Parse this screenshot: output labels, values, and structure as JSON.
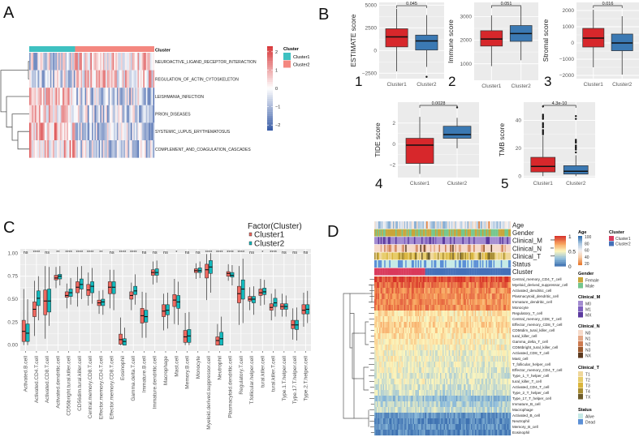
{
  "panel_labels": [
    "A",
    "B",
    "C",
    "D"
  ],
  "colors": {
    "cluster1_A": "#3ec1c1",
    "cluster2_A": "#f4877f",
    "red": "#d7272b",
    "blue": "#3b79b3",
    "c_cluster1": "#f0685f",
    "c_cluster2": "#12b9bd",
    "d_cluster1": "#d9395b",
    "d_cluster2": "#4470b8"
  },
  "chart_data": [
    {
      "id": "A",
      "type": "heatmap",
      "annotation_label": "Cluster",
      "rows": [
        "NEUROACTIVE_LIGAND_RECEPTOR_INTERACTION",
        "REGULATION_OF_ACTIN_CYTOSKELETON",
        "LEISHMANIA_INFECTION",
        "PRION_DISEASES",
        "SYSTEMIC_LUPUS_ERYTHEMATOSUS",
        "COMPLEMENT_AND_COAGULATION_CASCADES"
      ],
      "row_bias_cluster1": [
        -0.4,
        -0.4,
        0.5,
        0.6,
        0.7,
        0.6
      ],
      "colorbar": {
        "ticks": [
          2,
          1,
          0,
          -1,
          -2
        ],
        "range": [
          -2.3,
          2.3
        ]
      },
      "legend": {
        "title": "Cluster",
        "items": [
          "Cluster1",
          "Cluster2"
        ]
      }
    },
    {
      "id": "B",
      "type": "boxplot",
      "panels": [
        {
          "number": "1",
          "ylabel": "ESTIMATE score",
          "ylim": [
            -3100,
            5300
          ],
          "ticks": [
            -2500,
            0,
            2500,
            5000
          ],
          "p": "0.045",
          "categories": [
            "Cluster1",
            "Cluster2"
          ],
          "boxes": [
            {
              "min": -2300,
              "q1": 400,
              "median": 1500,
              "q3": 2400,
              "max": 4600,
              "outliers": []
            },
            {
              "min": -1800,
              "q1": 50,
              "median": 1050,
              "q3": 1700,
              "max": 3900,
              "outliers": [
                -2900
              ]
            }
          ]
        },
        {
          "number": "2",
          "ylabel": "Immune score",
          "ylim": [
            300,
            3600
          ],
          "ticks": [
            1000,
            2000,
            3000
          ],
          "p": "0.051",
          "categories": [
            "Cluster1",
            "Cluster2"
          ],
          "boxes": [
            {
              "min": 900,
              "q1": 1750,
              "median": 2050,
              "q3": 2400,
              "max": 3050,
              "outliers": []
            },
            {
              "min": 1150,
              "q1": 1950,
              "median": 2280,
              "q3": 2620,
              "max": 3400,
              "outliers": []
            }
          ]
        },
        {
          "number": "3",
          "ylabel": "Stromal score",
          "ylim": [
            -2200,
            2500
          ],
          "ticks": [
            -2000,
            -1000,
            0,
            1000,
            2000
          ],
          "p": "0.016",
          "categories": [
            "Cluster1",
            "Cluster2"
          ],
          "boxes": [
            {
              "min": -1500,
              "q1": -250,
              "median": 300,
              "q3": 900,
              "max": 2050,
              "outliers": []
            },
            {
              "min": -1950,
              "q1": -480,
              "median": 0,
              "q3": 550,
              "max": 1650,
              "outliers": []
            }
          ]
        },
        {
          "number": "4",
          "ylabel": "TIDE score",
          "ylim": [
            -3.2,
            4.0
          ],
          "ticks": [
            -2,
            0,
            2
          ],
          "p": "0.0028",
          "categories": [
            "Cluster1",
            "Cluster2"
          ],
          "boxes": [
            {
              "min": -2.85,
              "q1": -1.85,
              "median": -0.1,
              "q3": 0.55,
              "max": 2.6,
              "outliers": []
            },
            {
              "min": -0.4,
              "q1": 0.55,
              "median": 0.9,
              "q3": 1.7,
              "max": 2.5,
              "outliers": [
                3.5
              ]
            }
          ]
        },
        {
          "number": "5",
          "ylabel": "TMB score",
          "ylim": [
            -1,
            53
          ],
          "ticks": [
            0,
            20,
            40
          ],
          "p": "4.3e-10",
          "categories": [
            "Cluster1",
            "Cluster2"
          ],
          "boxes": [
            {
              "min": 0,
              "q1": 3,
              "median": 7,
              "q3": 13.5,
              "max": 29,
              "outliers": [
                30,
                31,
                32,
                33,
                35,
                36,
                37,
                38,
                41,
                42,
                43,
                44,
                50
              ]
            },
            {
              "min": 0,
              "q1": 1.5,
              "median": 3.5,
              "q3": 7.5,
              "max": 15,
              "outliers": [
                17,
                19,
                20,
                21,
                22,
                24,
                25,
                26,
                41,
                43
              ]
            }
          ]
        }
      ]
    },
    {
      "id": "C",
      "type": "boxplot",
      "legend": {
        "title": "Factor(Cluster)",
        "items": [
          "Cluster1",
          "Cluster2"
        ]
      },
      "ylim": [
        0,
        1
      ],
      "ticks": [
        "0.00",
        "0.25",
        "0.50",
        "0.75",
        "1.00"
      ],
      "categories": [
        "Activated.B.cell",
        "Activated.CD4.T.cell",
        "Activated.CD8.T.cell",
        "Activated.dendritic.cell",
        "CD56bright.tural.killer.cell",
        "CD56dim.tural.killer.cell",
        "Central.memory.CD8.T.cell",
        "Effector.memory.CD4.T.cell",
        "Effector.memory.CD8.T.cell",
        "Eosinophil",
        "Gamma.delta.T.cell",
        "Immature.B.cell",
        "Immature.dendritic.cell",
        "Macrophage",
        "Mast.cell",
        "Memory.B.cell",
        "Monocyte",
        "Myeloid.derived.suppressor.cell",
        "Neutrophil",
        "Plasmacytoid.dendritic.cell",
        "Regulatory.T.cell",
        "T.follicular.helper.cell",
        "tural.killer.cell",
        "tural.killer.T.cell",
        "Type.1.T.helper.cell",
        "Type.17.T.helper.cell",
        "Type.2.T.helper.cell"
      ],
      "significance": [
        "ns",
        "****",
        "ns",
        "**",
        "****",
        "****",
        "****",
        "**",
        "ns",
        "****",
        "****",
        "ns",
        "ns",
        "ns",
        "*",
        "ns",
        "ns",
        "****",
        "****",
        "****",
        "****",
        "ns",
        "*",
        "****",
        "ns",
        "ns",
        "ns"
      ],
      "cluster1": [
        [
          0,
          0.04,
          0.15,
          0.27,
          0.61
        ],
        [
          0.1,
          0.31,
          0.39,
          0.47,
          0.7
        ],
        [
          0.07,
          0.33,
          0.48,
          0.6,
          0.86
        ],
        [
          0.62,
          0.71,
          0.73,
          0.76,
          0.85
        ],
        [
          0.4,
          0.52,
          0.54,
          0.58,
          0.67
        ],
        [
          0.42,
          0.57,
          0.63,
          0.69,
          0.85
        ],
        [
          0.43,
          0.54,
          0.6,
          0.66,
          0.79
        ],
        [
          0.34,
          0.43,
          0.46,
          0.49,
          0.59
        ],
        [
          0.4,
          0.56,
          0.63,
          0.69,
          0.82
        ],
        [
          0,
          0.01,
          0.06,
          0.12,
          0.3
        ],
        [
          0.38,
          0.5,
          0.54,
          0.58,
          0.68
        ],
        [
          0.08,
          0.24,
          0.32,
          0.4,
          0.58
        ],
        [
          0.66,
          0.76,
          0.79,
          0.82,
          0.91
        ],
        [
          0.16,
          0.31,
          0.37,
          0.44,
          0.56
        ],
        [
          0.23,
          0.42,
          0.49,
          0.55,
          0.72
        ],
        [
          0,
          0.03,
          0.09,
          0.16,
          0.35
        ],
        [
          0.72,
          0.79,
          0.81,
          0.83,
          0.89
        ],
        [
          0.49,
          0.73,
          0.82,
          0.88,
          0.99
        ],
        [
          0,
          0,
          0.05,
          0.09,
          0.23
        ],
        [
          0.7,
          0.75,
          0.78,
          0.8,
          0.88
        ],
        [
          0.22,
          0.46,
          0.56,
          0.64,
          0.86
        ],
        [
          0.38,
          0.48,
          0.5,
          0.53,
          0.63
        ],
        [
          0.43,
          0.54,
          0.57,
          0.61,
          0.72
        ],
        [
          0.27,
          0.38,
          0.41,
          0.45,
          0.56
        ],
        [
          0.31,
          0.39,
          0.42,
          0.45,
          0.56
        ],
        [
          0.06,
          0.18,
          0.22,
          0.27,
          0.4
        ],
        [
          0.2,
          0.34,
          0.38,
          0.44,
          0.57
        ]
      ],
      "cluster2": [
        [
          0,
          0.04,
          0.13,
          0.23,
          0.5
        ],
        [
          0.27,
          0.43,
          0.51,
          0.59,
          0.75
        ],
        [
          0.21,
          0.36,
          0.48,
          0.61,
          0.85
        ],
        [
          0.65,
          0.72,
          0.75,
          0.77,
          0.86
        ],
        [
          0.44,
          0.53,
          0.57,
          0.61,
          0.73
        ],
        [
          0.5,
          0.61,
          0.66,
          0.72,
          0.86
        ],
        [
          0.45,
          0.57,
          0.64,
          0.69,
          0.84
        ],
        [
          0.33,
          0.43,
          0.47,
          0.5,
          0.6
        ],
        [
          0.38,
          0.56,
          0.63,
          0.69,
          0.82
        ],
        [
          0,
          0,
          0.04,
          0.07,
          0.19
        ],
        [
          0.44,
          0.55,
          0.59,
          0.64,
          0.77
        ],
        [
          0.08,
          0.25,
          0.31,
          0.38,
          0.57
        ],
        [
          0.68,
          0.76,
          0.79,
          0.83,
          0.92
        ],
        [
          0.18,
          0.33,
          0.38,
          0.44,
          0.57
        ],
        [
          0.22,
          0.4,
          0.47,
          0.54,
          0.69
        ],
        [
          0,
          0.03,
          0.1,
          0.17,
          0.36
        ],
        [
          0.73,
          0.79,
          0.81,
          0.84,
          0.91
        ],
        [
          0.57,
          0.78,
          0.85,
          0.92,
          1.0
        ],
        [
          0,
          0,
          0.07,
          0.14,
          0.31
        ],
        [
          0.65,
          0.74,
          0.76,
          0.79,
          0.87
        ],
        [
          0.24,
          0.5,
          0.61,
          0.71,
          0.94
        ],
        [
          0.33,
          0.46,
          0.5,
          0.53,
          0.64
        ],
        [
          0.44,
          0.55,
          0.58,
          0.62,
          0.71
        ],
        [
          0.31,
          0.42,
          0.46,
          0.51,
          0.61
        ],
        [
          0.31,
          0.39,
          0.42,
          0.45,
          0.54
        ],
        [
          0.05,
          0.17,
          0.22,
          0.27,
          0.41
        ],
        [
          0.24,
          0.34,
          0.39,
          0.44,
          0.59
        ]
      ]
    },
    {
      "id": "D",
      "type": "heatmap",
      "annotations": [
        "Age",
        "Gender",
        "Clinical_M",
        "Clinical_N",
        "Clinical_T",
        "Status",
        "Cluster"
      ],
      "annotation_sig": [
        "",
        "",
        "***",
        "**",
        "***",
        "",
        ""
      ],
      "rows": [
        "Central_memory_CD4_T_cell",
        "Myeloid_derived_suppressor_cell",
        "Activated_dendritic_cell",
        "Plasmacytoid_dendritic_cell",
        "Immature_dendritic_cell",
        "Monocyte",
        "Regulatory_T_cell",
        "Central_memory_CD8_T_cell",
        "Effector_memory_CD8_T_cell",
        "CD56dim_tural_killer_cell",
        "tural_killer_cell",
        "Gamma_delta_T_cell",
        "CD56bright_tural_killer_cell",
        "Activated_CD8_T_cell",
        "Mast_cell",
        "T_follicular_helper_cell",
        "Effector_memory_CD4_T_cell",
        "Type_1_T_helper_cell",
        "tural_killer_T_cell",
        "Activated_CD4_T_cell",
        "Type_2_T_helper_cell",
        "Type_17_T_helper_cell",
        "Immature_B_cell",
        "Macrophage",
        "Activated_B_cell",
        "Neutrophil",
        "Memory_B_cell",
        "Eosinophil"
      ],
      "row_means": [
        0.95,
        0.86,
        0.8,
        0.8,
        0.78,
        0.8,
        0.56,
        0.55,
        0.6,
        0.58,
        0.55,
        0.52,
        0.5,
        0.45,
        0.48,
        0.45,
        0.44,
        0.42,
        0.43,
        0.4,
        0.38,
        0.25,
        0.33,
        0.37,
        0.12,
        0.08,
        0.1,
        0.07
      ],
      "colorbar": {
        "ticks": [
          "1",
          "0.5",
          "0"
        ]
      },
      "legends": [
        {
          "title": "Age",
          "ticks": [
            "100",
            "80",
            "60",
            "40",
            "20"
          ]
        },
        {
          "title": "Cluster",
          "items": [
            "Cluster1",
            "Cluster2"
          ],
          "colors": [
            "#d9395b",
            "#4470b8"
          ]
        },
        {
          "title": "Gender",
          "items": [
            "Female",
            "Male"
          ],
          "colors": [
            "#c9a53a",
            "#74c68d"
          ]
        },
        {
          "title": "Clinical_M",
          "items": [
            "M0",
            "M1",
            "MX"
          ],
          "colors": [
            "#a28bd0",
            "#7e5fbf",
            "#5b3a9e"
          ]
        },
        {
          "title": "Clinical_N",
          "items": [
            "N0",
            "N1",
            "N2",
            "N3",
            "NX"
          ],
          "colors": [
            "#f6d9c9",
            "#e4a785",
            "#cd7a4f",
            "#9c5a2e",
            "#5c3a1f"
          ]
        },
        {
          "title": "Clinical_T",
          "items": [
            "T1",
            "T2",
            "T3",
            "T4",
            "TX"
          ],
          "colors": [
            "#efd79a",
            "#e7cc6a",
            "#d9b43b",
            "#a88d32",
            "#6c5b2a"
          ]
        },
        {
          "title": "Status",
          "items": [
            "Alive",
            "Dead"
          ],
          "colors": [
            "#c6eae6",
            "#5b8fd6"
          ]
        }
      ]
    }
  ]
}
